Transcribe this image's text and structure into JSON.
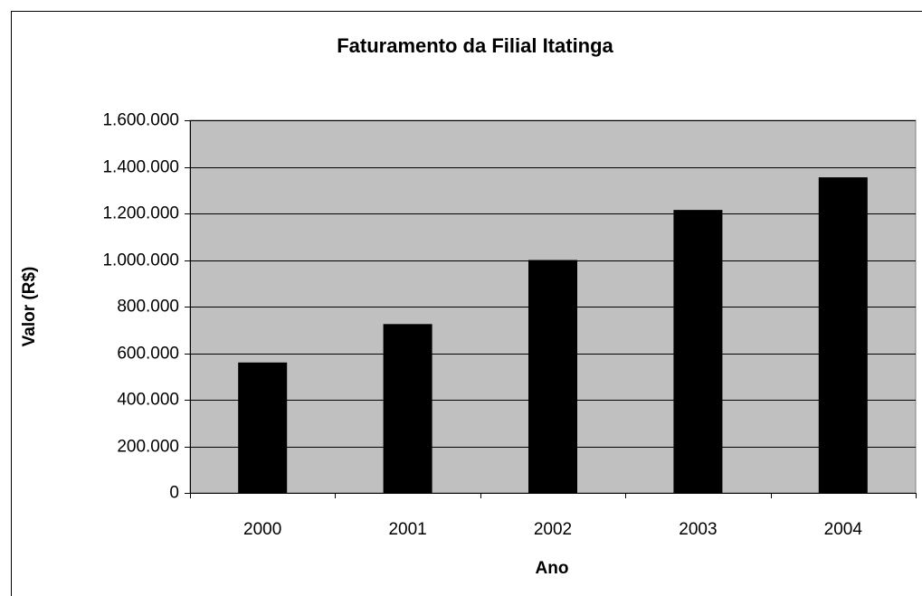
{
  "chart_data": {
    "type": "bar",
    "title": "Faturamento da Filial Itatinga",
    "xlabel": "Ano",
    "ylabel": "Valor (R$)",
    "categories": [
      "2000",
      "2001",
      "2002",
      "2003",
      "2004"
    ],
    "values": [
      560000,
      725000,
      1000000,
      1215000,
      1355000
    ],
    "color": "#000000",
    "ylim": [
      0,
      1600000
    ],
    "yticks": [
      0,
      {
        "value": 200000,
        "label": "200.000"
      },
      {
        "value": 400000,
        "label": "400.000"
      },
      {
        "value": 600000,
        "label": "600.000"
      },
      {
        "value": 800000,
        "label": "800.000"
      },
      {
        "value": 1000000,
        "label": "1.000.000"
      },
      {
        "value": 1200000,
        "label": "1.200.000"
      },
      {
        "value": 1400000,
        "label": "1.400.000"
      },
      {
        "value": 1600000,
        "label": "1.600.000"
      }
    ],
    "grid": true
  }
}
